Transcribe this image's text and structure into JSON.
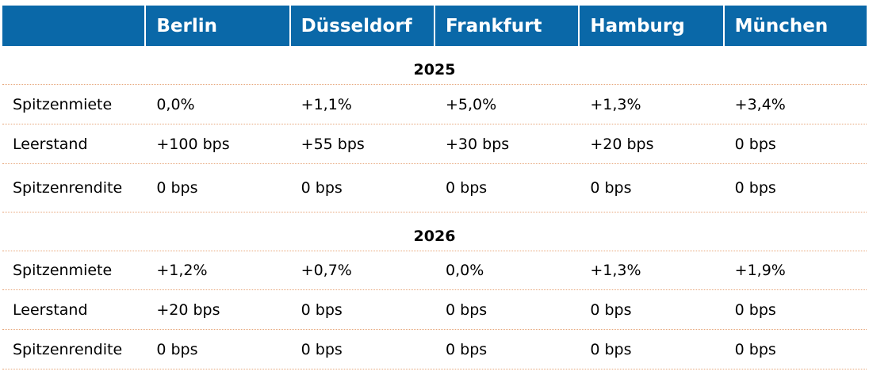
{
  "header": {
    "columns": [
      "",
      "Berlin",
      "Düsseldorf",
      "Frankfurt",
      "Hamburg",
      "München"
    ]
  },
  "sections": [
    {
      "year": "2025",
      "rows": [
        {
          "label": "Spitzenmiete",
          "values": [
            "0,0%",
            "+1,1%",
            "+5,0%",
            "+1,3%",
            "+3,4%"
          ]
        },
        {
          "label": "Leerstand",
          "values": [
            "+100 bps",
            "+55 bps",
            "+30 bps",
            "+20 bps",
            "0 bps"
          ]
        },
        {
          "label": "Spitzenrendite",
          "values": [
            "0 bps",
            "0 bps",
            "0 bps",
            "0 bps",
            "0 bps"
          ]
        }
      ]
    },
    {
      "year": "2026",
      "rows": [
        {
          "label": "Spitzenmiete",
          "values": [
            "+1,2%",
            "+0,7%",
            "0,0%",
            "+1,3%",
            "+1,9%"
          ]
        },
        {
          "label": "Leerstand",
          "values": [
            "+20 bps",
            "0 bps",
            "0 bps",
            "0 bps",
            "0 bps"
          ]
        },
        {
          "label": "Spitzenrendite",
          "values": [
            "0 bps",
            "0 bps",
            "0 bps",
            "0 bps",
            "0 bps"
          ]
        }
      ]
    }
  ],
  "colors": {
    "header_bg": "#0a68a8",
    "divider": "#e7a77b"
  }
}
